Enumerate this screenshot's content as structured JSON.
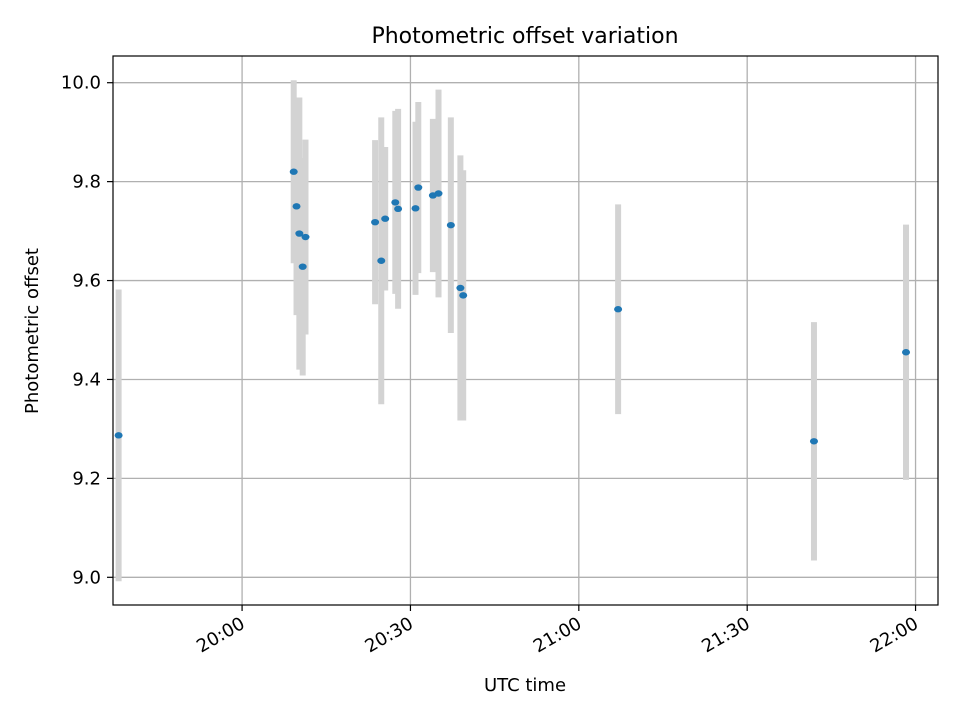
{
  "chart_data": {
    "type": "scatter",
    "title": "Photometric offset variation",
    "xlabel": "UTC time",
    "ylabel": "Photometric offset",
    "xlim": [
      "19:37",
      "22:04"
    ],
    "ylim": [
      8.944,
      10.054
    ],
    "x_ticks": [
      "20:00",
      "20:30",
      "21:00",
      "21:30",
      "22:00"
    ],
    "y_ticks": [
      9.0,
      9.2,
      9.4,
      9.6,
      9.8,
      10.0
    ],
    "y_tick_labels": [
      "9.0",
      "9.2",
      "9.4",
      "9.6",
      "9.8",
      "10.0"
    ],
    "grid": true,
    "colors": {
      "point": "#1f77b4",
      "error_bar": "#d3d3d3",
      "grid": "#b0b0b0"
    },
    "series": [
      {
        "points": [
          {
            "x": "19:38:00",
            "y": 9.287,
            "err": 0.295
          },
          {
            "x": "20:09:12",
            "y": 9.82,
            "err": 0.185
          },
          {
            "x": "20:09:42",
            "y": 9.75,
            "err": 0.22
          },
          {
            "x": "20:10:12",
            "y": 9.695,
            "err": 0.275
          },
          {
            "x": "20:10:48",
            "y": 9.628,
            "err": 0.22
          },
          {
            "x": "20:11:18",
            "y": 9.688,
            "err": 0.197
          },
          {
            "x": "20:23:42",
            "y": 9.718,
            "err": 0.166
          },
          {
            "x": "20:24:48",
            "y": 9.64,
            "err": 0.29
          },
          {
            "x": "20:25:30",
            "y": 9.725,
            "err": 0.145
          },
          {
            "x": "20:27:18",
            "y": 9.758,
            "err": 0.185
          },
          {
            "x": "20:27:48",
            "y": 9.745,
            "err": 0.202
          },
          {
            "x": "20:30:54",
            "y": 9.746,
            "err": 0.175
          },
          {
            "x": "20:31:24",
            "y": 9.788,
            "err": 0.173
          },
          {
            "x": "20:34:00",
            "y": 9.772,
            "err": 0.155
          },
          {
            "x": "20:35:00",
            "y": 9.776,
            "err": 0.21
          },
          {
            "x": "20:37:12",
            "y": 9.712,
            "err": 0.218
          },
          {
            "x": "20:38:54",
            "y": 9.585,
            "err": 0.268
          },
          {
            "x": "20:39:24",
            "y": 9.57,
            "err": 0.253
          },
          {
            "x": "21:07:00",
            "y": 9.542,
            "err": 0.212
          },
          {
            "x": "21:41:54",
            "y": 9.275,
            "err": 0.241
          },
          {
            "x": "21:58:18",
            "y": 9.455,
            "err": 0.258
          }
        ]
      }
    ]
  }
}
